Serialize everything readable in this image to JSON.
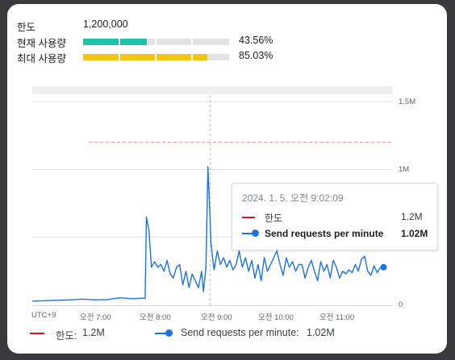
{
  "quota": {
    "limit_label": "한도",
    "limit_value": "1,200,000",
    "current_label": "현재 사용량",
    "current_percent": "43.56%",
    "current_fraction": 0.4356,
    "current_color": "#1ec0a6",
    "peak_label": "최대 사용량",
    "peak_percent": "85.03%",
    "peak_fraction": 0.8503,
    "peak_color": "#f6c416"
  },
  "chart_data": {
    "type": "line",
    "x_tick_labels": [
      "UTC+9",
      "오전 7:00",
      "오전 8:00",
      "오전 9:00",
      "오전 10:00",
      "오전 11:00"
    ],
    "y_tick_labels": [
      "1.5M",
      "1M",
      "0"
    ],
    "ylim": [
      0,
      1500000
    ],
    "limit_line": {
      "name": "한도",
      "value": 1200000,
      "color": "#c5221f"
    },
    "series": [
      {
        "name": "Send requests per minute",
        "color": "#1a73e8",
        "x_hours": [
          6.2,
          6.5,
          6.8,
          7.0,
          7.2,
          7.4,
          7.6,
          7.8,
          7.95,
          8.0,
          8.02,
          8.06,
          8.1,
          8.15,
          8.2,
          8.25,
          8.3,
          8.35,
          8.4,
          8.45,
          8.5,
          8.55,
          8.6,
          8.65,
          8.7,
          8.75,
          8.8,
          8.85,
          8.9,
          8.93,
          8.97,
          9.0,
          9.03,
          9.05,
          9.08,
          9.1,
          9.15,
          9.2,
          9.25,
          9.3,
          9.35,
          9.4,
          9.45,
          9.5,
          9.55,
          9.6,
          9.65,
          9.7,
          9.75,
          9.8,
          9.85,
          9.9,
          9.95,
          10.0,
          10.05,
          10.1,
          10.15,
          10.2,
          10.25,
          10.3,
          10.35,
          10.4,
          10.45,
          10.5,
          10.55,
          10.6,
          10.65,
          10.7,
          10.75,
          10.8,
          10.85,
          10.9,
          10.95,
          11.0,
          11.05,
          11.1,
          11.15,
          11.2,
          11.25,
          11.3,
          11.35,
          11.4,
          11.45,
          11.5,
          11.55,
          11.6,
          11.65,
          11.7,
          11.75
        ],
        "values": [
          30000,
          35000,
          40000,
          45000,
          40000,
          42000,
          55000,
          48000,
          52000,
          50000,
          650000,
          550000,
          280000,
          320000,
          280000,
          300000,
          250000,
          330000,
          230000,
          200000,
          280000,
          300000,
          150000,
          250000,
          130000,
          230000,
          180000,
          130000,
          250000,
          100000,
          280000,
          1020000,
          700000,
          450000,
          330000,
          260000,
          400000,
          300000,
          350000,
          280000,
          330000,
          260000,
          300000,
          400000,
          280000,
          350000,
          250000,
          330000,
          200000,
          300000,
          180000,
          350000,
          250000,
          300000,
          350000,
          400000,
          300000,
          220000,
          350000,
          280000,
          320000,
          250000,
          300000,
          300000,
          200000,
          280000,
          330000,
          250000,
          180000,
          320000,
          250000,
          300000,
          200000,
          330000,
          280000,
          200000,
          250000,
          230000,
          260000,
          240000,
          300000,
          250000,
          340000,
          360000,
          250000,
          220000,
          290000,
          240000,
          280000
        ]
      }
    ],
    "legend": [
      {
        "label": "한도:",
        "value": "1.2M"
      },
      {
        "label": "Send requests per minute:",
        "value": "1.02M"
      }
    ],
    "tooltip": {
      "timestamp": "2024. 1. 5. 오전 9:02:09",
      "rows": [
        {
          "label": "한도",
          "value": "1.2M"
        },
        {
          "label": "Send requests per minute",
          "value": "1.02M"
        }
      ]
    }
  }
}
